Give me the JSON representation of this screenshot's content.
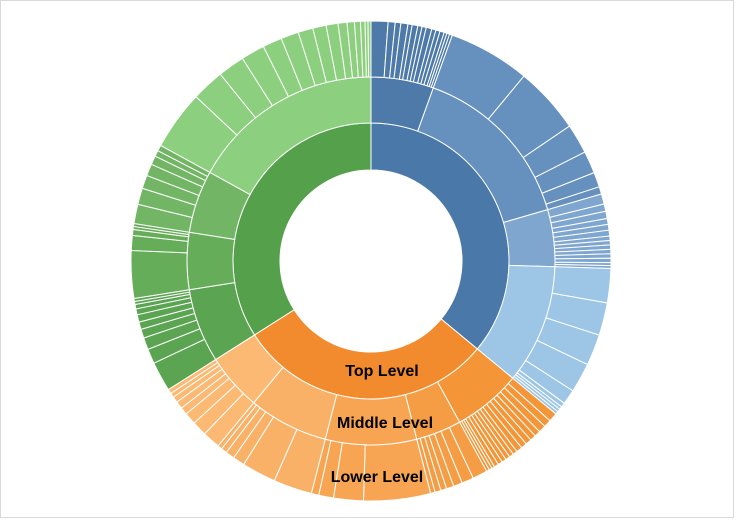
{
  "chart_data": {
    "type": "sunburst",
    "title": "",
    "ring_labels": {
      "top": "Top Level",
      "middle": "Middle Level",
      "lower": "Lower Level"
    },
    "levels": [
      {
        "name": "",
        "ring": "top",
        "color": "#4a78a8",
        "values": [
          36
        ],
        "middle": [
          {
            "value": 5.5,
            "color": "#4e7aaa",
            "lower": [
              1.2,
              0.5,
              0.4,
              0.5,
              0.3,
              0.4,
              0.3,
              0.3,
              0.4,
              0.3,
              0.3,
              0.3,
              0.2,
              0.2,
              0.2
            ]
          },
          {
            "value": 15,
            "color": "#6690bd",
            "lower": [
              5.5,
              4.5,
              2.0,
              1.5,
              1.0,
              0.5
            ]
          },
          {
            "value": 5,
            "color": "#7ea6cf",
            "lower": [
              0.7,
              0.5,
              0.5,
              0.4,
              0.4,
              0.4,
              0.3,
              0.3,
              0.3,
              0.3,
              0.3,
              0.3,
              0.2,
              0.2
            ]
          },
          {
            "value": 10.5,
            "color": "#9dc5e6",
            "lower": [
              2.3,
              2.2,
              2.1,
              2.0,
              1.0,
              0.3,
              0.2,
              0.2,
              0.2
            ]
          }
        ]
      },
      {
        "name": "",
        "ring": "top",
        "color": "#f28b2e",
        "values": [
          30
        ],
        "middle": [
          {
            "value": 6,
            "color": "#f49637",
            "lower": [
              0.6,
              0.5,
              0.5,
              0.4,
              0.4,
              0.4,
              0.4,
              0.4,
              0.3,
              0.3,
              0.3,
              0.3,
              0.3,
              0.3,
              0.2,
              0.2,
              0.2
            ]
          },
          {
            "value": 4,
            "color": "#f59d44",
            "lower": [
              1.0,
              0.8,
              0.6,
              0.5,
              0.4,
              0.4,
              0.3
            ]
          },
          {
            "value": 8,
            "color": "#f7a552",
            "lower": [
              4.5,
              2.0,
              1.0,
              0.5
            ]
          },
          {
            "value": 7,
            "color": "#f9b167",
            "lower": [
              2.6,
              2.3,
              0.8,
              0.6,
              0.4,
              0.3
            ]
          },
          {
            "value": 5,
            "color": "#fbb974",
            "lower": [
              1.2,
              1.0,
              0.8,
              0.5,
              0.5,
              0.4,
              0.3,
              0.3
            ]
          }
        ]
      },
      {
        "name": "",
        "ring": "top",
        "color": "#55a14b",
        "values": [
          34
        ],
        "middle": [
          {
            "value": 6.5,
            "color": "#5ba552",
            "lower": [
              2.0,
              1.0,
              0.8,
              0.6,
              0.5,
              0.5,
              0.4,
              0.3,
              0.2,
              0.2
            ]
          },
          {
            "value": 5,
            "color": "#66ad5a",
            "lower": [
              3.2,
              1.0,
              0.4,
              0.2,
              0.2
            ]
          },
          {
            "value": 5.5,
            "color": "#72b565",
            "lower": [
              1.3,
              1.1,
              0.9,
              0.8,
              0.6,
              0.4,
              0.4
            ]
          },
          {
            "value": 17,
            "color": "#8ccf7e",
            "lower": [
              4.0,
              2.2,
              1.8,
              1.6,
              1.3,
              1.2,
              1.0,
              0.9,
              0.8,
              0.6,
              0.5,
              0.4,
              0.3,
              0.2,
              0.2
            ]
          }
        ]
      }
    ]
  }
}
